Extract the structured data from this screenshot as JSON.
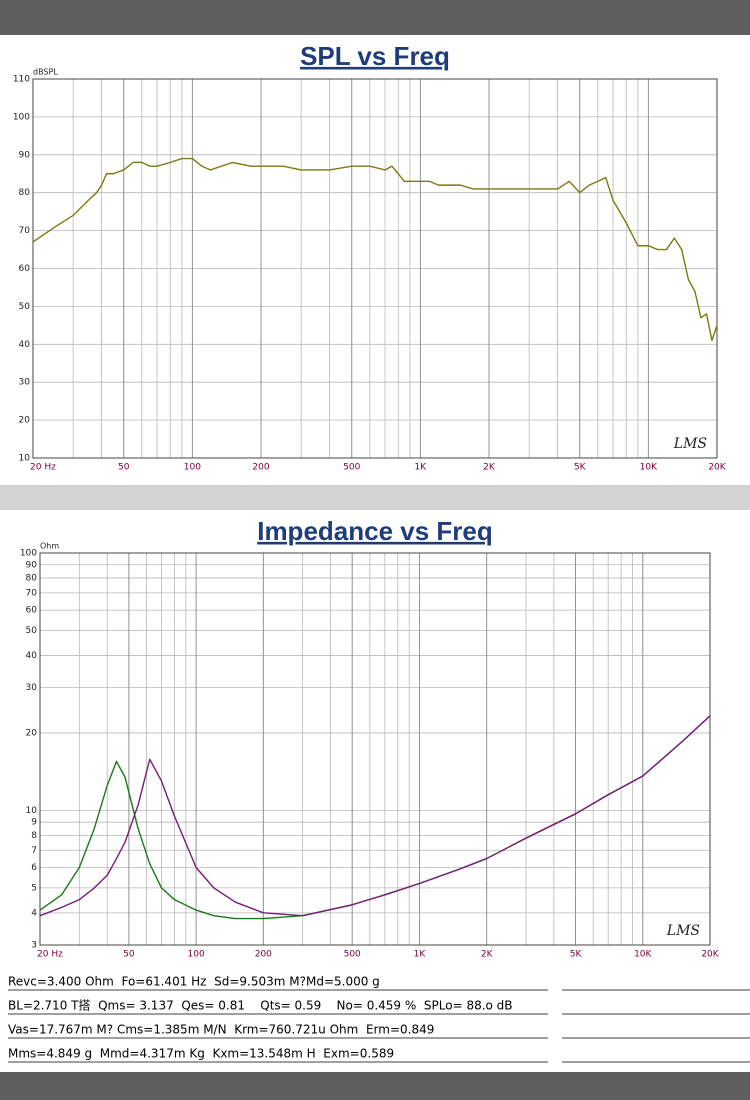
{
  "chart_data": [
    {
      "type": "line",
      "title": "SPL vs Freq",
      "y_label": "dBSPL",
      "watermark": "LMS",
      "xlog": true,
      "ylog": false,
      "grid": true,
      "minor_grid": true,
      "xlim": [
        20,
        20000
      ],
      "ylim": [
        10,
        110
      ],
      "xticks": [
        {
          "value": 20,
          "label": "20 Hz"
        },
        50,
        100,
        200,
        500,
        {
          "value": 1000,
          "label": "1K"
        },
        {
          "value": 2000,
          "label": "2K"
        },
        {
          "value": 5000,
          "label": "5K"
        },
        {
          "value": 10000,
          "label": "10K"
        },
        {
          "value": 20000,
          "label": "20K"
        }
      ],
      "yticks": [
        10,
        20,
        30,
        40,
        50,
        60,
        70,
        80,
        90,
        100,
        110
      ],
      "x": [
        20,
        25,
        30,
        35,
        38,
        40,
        42,
        45,
        50,
        55,
        60,
        65,
        70,
        80,
        90,
        100,
        110,
        120,
        150,
        180,
        200,
        250,
        300,
        400,
        500,
        600,
        700,
        750,
        800,
        850,
        900,
        1000,
        1100,
        1200,
        1500,
        1700,
        2000,
        2500,
        3000,
        3500,
        4000,
        4500,
        5000,
        5500,
        6000,
        6500,
        7000,
        8000,
        9000,
        10000,
        11000,
        12000,
        13000,
        14000,
        15000,
        16000,
        17000,
        18000,
        19000,
        20000
      ],
      "series": [
        {
          "color": "#7a7a10",
          "values": [
            67,
            71,
            74,
            78,
            80,
            82,
            85,
            85,
            86,
            88,
            88,
            87,
            87,
            88,
            89,
            89,
            87,
            86,
            88,
            87,
            87,
            87,
            86,
            86,
            87,
            87,
            86,
            87,
            85,
            83,
            83,
            83,
            83,
            82,
            82,
            81,
            81,
            81,
            81,
            81,
            81,
            83,
            80,
            82,
            83,
            84,
            78,
            72,
            66,
            66,
            65,
            65,
            68,
            65,
            57,
            54,
            47,
            48,
            41,
            45
          ]
        }
      ]
    },
    {
      "type": "line",
      "title": "Impedance vs Freq",
      "y_label": "Ohm",
      "watermark": "LMS",
      "xlog": true,
      "ylog": true,
      "grid": true,
      "minor_grid": true,
      "xlim": [
        20,
        20000
      ],
      "ylim": [
        3,
        100
      ],
      "xticks": [
        {
          "value": 20,
          "label": "20 Hz"
        },
        50,
        100,
        200,
        500,
        {
          "value": 1000,
          "label": "1K"
        },
        {
          "value": 2000,
          "label": "2K"
        },
        {
          "value": 5000,
          "label": "5K"
        },
        {
          "value": 10000,
          "label": "10K"
        },
        {
          "value": 20000,
          "label": "20K"
        }
      ],
      "yticks": [
        3,
        4,
        5,
        6,
        7,
        8,
        9,
        10,
        20,
        30,
        40,
        50,
        60,
        70,
        80,
        90,
        100
      ],
      "x": [
        20,
        25,
        30,
        35,
        40,
        44,
        48,
        55,
        62,
        70,
        80,
        100,
        120,
        150,
        200,
        300,
        500,
        700,
        1000,
        1500,
        2000,
        3000,
        5000,
        7000,
        10000,
        15000,
        20000
      ],
      "series": [
        {
          "color": "#1a7a1a",
          "values": [
            4.1,
            4.7,
            6.0,
            8.5,
            12.5,
            15.5,
            13.5,
            8.5,
            6.2,
            5.0,
            4.5,
            4.1,
            3.9,
            3.8,
            3.8,
            3.9,
            4.3,
            4.7,
            5.2,
            5.9,
            6.5,
            7.8,
            9.7,
            11.5,
            13.6,
            18.5,
            23.3
          ]
        },
        {
          "color": "#7a1a7a",
          "values": [
            3.9,
            4.2,
            4.5,
            5.0,
            5.6,
            6.5,
            7.5,
            10.5,
            15.8,
            13.0,
            9.5,
            6.0,
            5.0,
            4.4,
            4.0,
            3.9,
            4.3,
            4.7,
            5.2,
            5.9,
            6.5,
            7.8,
            9.7,
            11.5,
            13.6,
            18.5,
            23.3
          ]
        }
      ]
    }
  ],
  "parameters": [
    "Revc=3.400 Ohm  Fo=61.401 Hz  Sd=9.503m M?Md=5.000 g",
    "BL=2.710 T搭  Qms= 3.137  Qes= 0.81    Qts= 0.59    No= 0.459 %  SPLo= 88.o dB",
    "Vas=17.767m M? Cms=1.385m M/N  Krm=760.721u Ohm  Erm=0.849",
    "Mms=4.849 g  Mmd=4.317m Kg  Kxm=13.548m H  Exm=0.589"
  ]
}
